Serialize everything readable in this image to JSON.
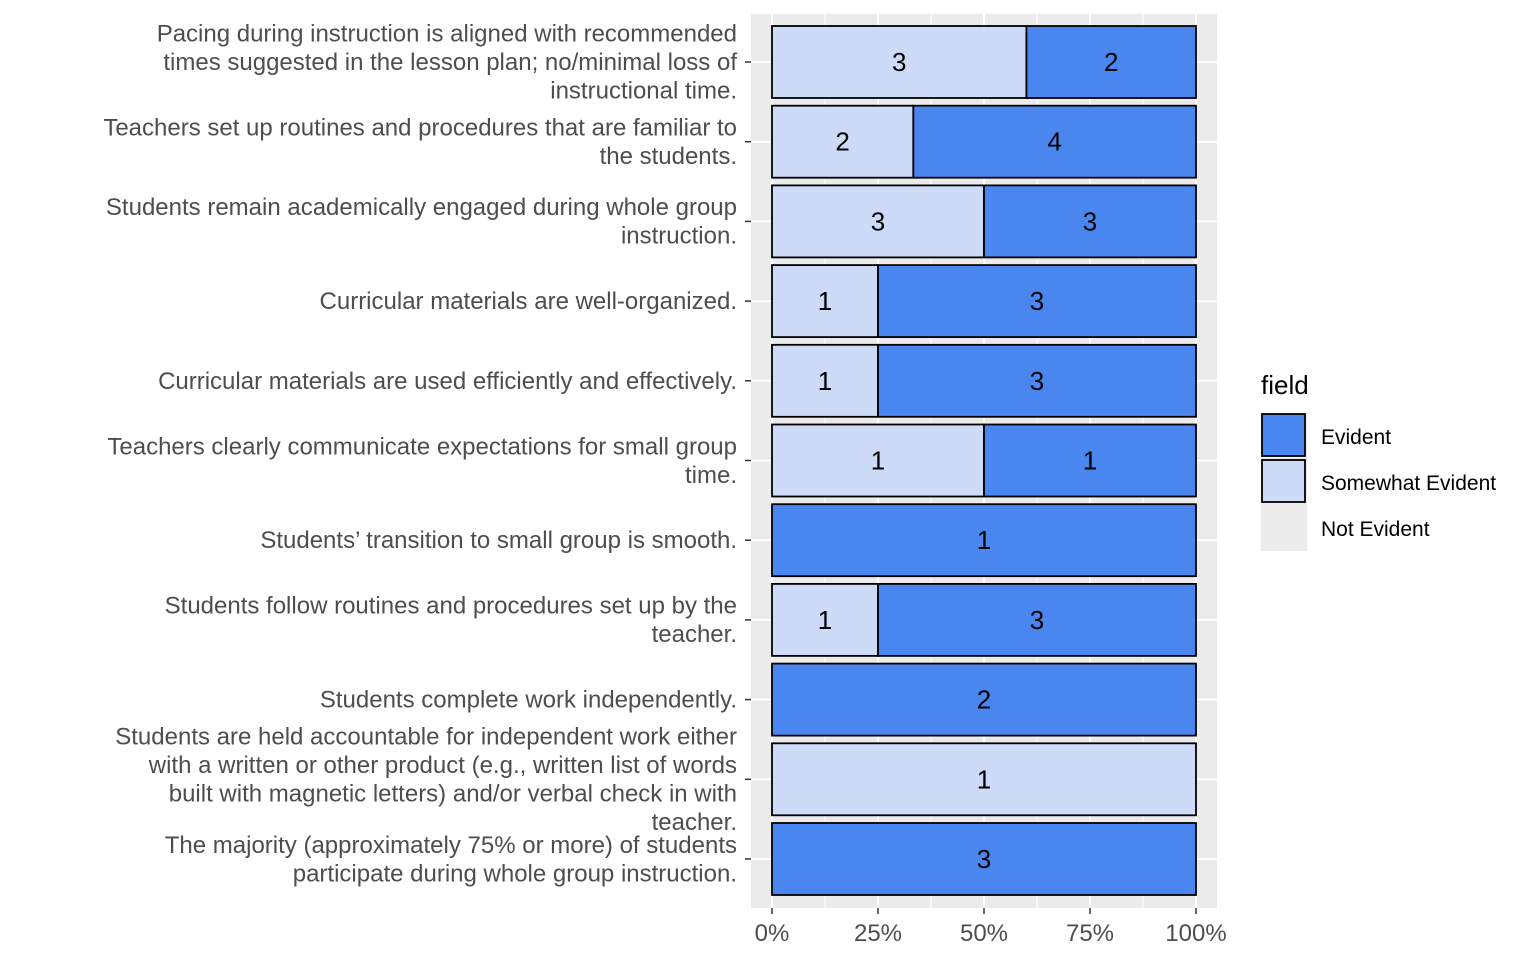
{
  "chart_data": {
    "type": "bar",
    "orientation": "horizontal",
    "stacked": "percent",
    "grid": true,
    "legend_position": "right",
    "legend_title": "field",
    "xlim": [
      0,
      100
    ],
    "x_ticks": [
      "0%",
      "25%",
      "50%",
      "75%",
      "100%"
    ],
    "colors": {
      "Evident": "#4a86f0",
      "Somewhat Evident": "#cddbf8",
      "Not Evident": "#ebebeb",
      "panel": "#ebebeb",
      "grid": "#ffffff"
    },
    "legend": [
      {
        "name": "Evident",
        "color": "#4a86f0",
        "outlined": true
      },
      {
        "name": "Somewhat Evident",
        "color": "#cddbf8",
        "outlined": true
      },
      {
        "name": "Not Evident",
        "color": "#ebebeb",
        "outlined": false
      }
    ],
    "categories": [
      {
        "label": [
          "Pacing during instruction is aligned with recommended",
          "times suggested in the lesson plan; no/minimal loss of",
          "instructional time."
        ],
        "somewhat": 3,
        "evident": 2
      },
      {
        "label": [
          "Teachers set up routines and procedures that are familiar to",
          "the students."
        ],
        "somewhat": 2,
        "evident": 4
      },
      {
        "label": [
          "Students remain academically engaged during whole group",
          "instruction."
        ],
        "somewhat": 3,
        "evident": 3
      },
      {
        "label": [
          "Curricular materials are well-organized."
        ],
        "somewhat": 1,
        "evident": 3
      },
      {
        "label": [
          "Curricular materials are used efficiently and effectively."
        ],
        "somewhat": 1,
        "evident": 3
      },
      {
        "label": [
          "Teachers clearly communicate expectations for small group",
          "time."
        ],
        "somewhat": 1,
        "evident": 1
      },
      {
        "label": [
          "Students’ transition to small group is smooth."
        ],
        "somewhat": 0,
        "evident": 1
      },
      {
        "label": [
          "Students follow routines and procedures set up by the",
          "teacher."
        ],
        "somewhat": 1,
        "evident": 3
      },
      {
        "label": [
          "Students complete work independently."
        ],
        "somewhat": 0,
        "evident": 2
      },
      {
        "label": [
          "Students are held accountable for independent work either",
          "with a written or other product (e.g., written list of words",
          "built with magnetic letters) and/or verbal check in with",
          "teacher."
        ],
        "somewhat": 1,
        "evident": 0
      },
      {
        "label": [
          "The majority (approximately 75% or more) of students",
          "participate during whole group instruction."
        ],
        "somewhat": 0,
        "evident": 3
      }
    ]
  }
}
